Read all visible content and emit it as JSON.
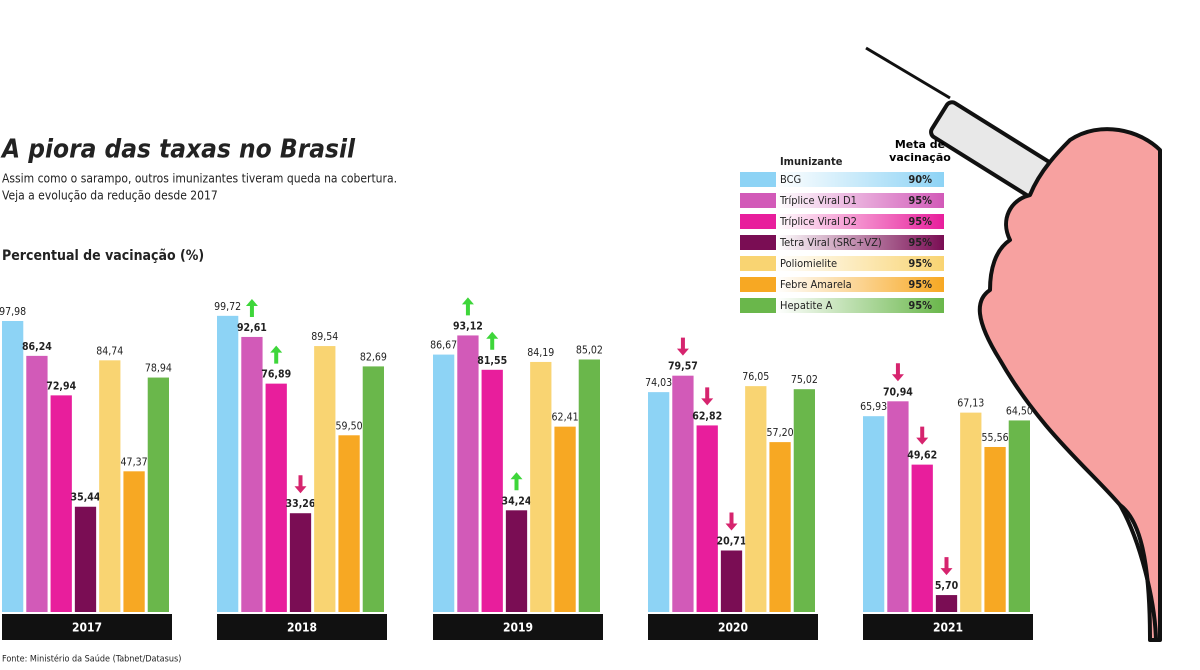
{
  "chart_data": {
    "type": "bar",
    "title": "A piora das taxas no Brasil",
    "subtitle_lines": [
      "Assim como o sarampo, outros imunizantes tiveram queda na cobertura.",
      "Veja a evolução da redução desde 2017"
    ],
    "y_label": "Percentual de vacinação (%)",
    "source": "Fonte: Ministério da Saúde (Tabnet/Datasus)",
    "legend_header": "Imunizante",
    "goal_header": "Meta de vacinação",
    "categories": [
      "2017",
      "2018",
      "2019",
      "2020",
      "2021"
    ],
    "ylim": [
      0,
      100
    ],
    "series": [
      {
        "name": "BCG",
        "color": "#8dd3f5",
        "goal": 90,
        "goal_label": "90%",
        "values": [
          97.98,
          99.72,
          86.67,
          74.03,
          65.93
        ],
        "value_labels": [
          "97,98",
          "99,72",
          "86,67",
          "74,03",
          "65,93"
        ]
      },
      {
        "name": "Tríplice Viral D1",
        "color": "#d25ab8",
        "goal": 95,
        "goal_label": "95%",
        "bold": true,
        "trend": [
          null,
          "up",
          "up",
          "down",
          "down"
        ],
        "values": [
          86.24,
          92.61,
          93.12,
          79.57,
          70.94
        ],
        "value_labels": [
          "86,24",
          "92,61",
          "93,12",
          "79,57",
          "70,94"
        ]
      },
      {
        "name": "Tríplice Viral D2",
        "color": "#e81e9c",
        "goal": 95,
        "goal_label": "95%",
        "bold": true,
        "trend": [
          null,
          "up",
          "up",
          "down",
          "down"
        ],
        "values": [
          72.94,
          76.89,
          81.55,
          62.82,
          49.62
        ],
        "value_labels": [
          "72,94",
          "76,89",
          "81,55",
          "62,82",
          "49,62"
        ]
      },
      {
        "name": "Tetra Viral (SRC+VZ)",
        "color": "#7a0d54",
        "goal": 95,
        "goal_label": "95%",
        "bold": true,
        "trend": [
          null,
          "down",
          "up",
          "down",
          "down"
        ],
        "values": [
          35.44,
          33.26,
          34.24,
          20.71,
          5.7
        ],
        "value_labels": [
          "35,44",
          "33,26",
          "34,24",
          "20,71",
          "5,70"
        ]
      },
      {
        "name": "Poliomielite",
        "color": "#f9d472",
        "goal": 95,
        "goal_label": "95%",
        "values": [
          84.74,
          89.54,
          84.19,
          76.05,
          67.13
        ],
        "value_labels": [
          "84,74",
          "89,54",
          "84,19",
          "76,05",
          "67,13"
        ]
      },
      {
        "name": "Febre Amarela",
        "color": "#f7a823",
        "goal": 95,
        "goal_label": "95%",
        "values": [
          47.37,
          59.5,
          62.41,
          57.2,
          55.56
        ],
        "value_labels": [
          "47,37",
          "59,50",
          "62,41",
          "57,20",
          "55,56"
        ]
      },
      {
        "name": "Hepatite A",
        "color": "#6ab74b",
        "goal": 95,
        "goal_label": "95%",
        "values": [
          78.94,
          82.69,
          85.02,
          75.02,
          64.5
        ],
        "value_labels": [
          "78,94",
          "82,69",
          "85,02",
          "75,02",
          "64,50"
        ]
      }
    ]
  }
}
